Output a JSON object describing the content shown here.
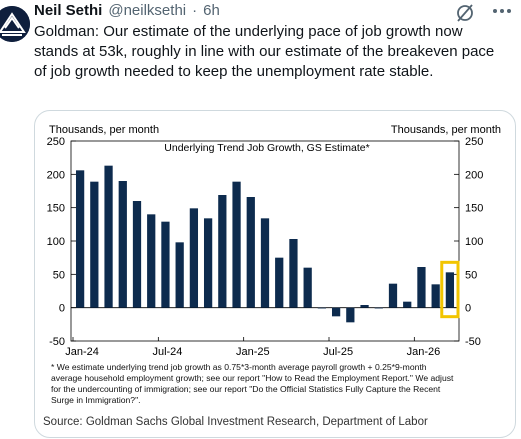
{
  "tweet": {
    "author_name": "Neil Sethi",
    "handle": "@neilksethi",
    "time": "6h",
    "text": "Goldman: Our estimate of the underlying pace of job growth now stands at 53k, roughly in line with our estimate of the breakeven pace of job growth needed to keep the unemployment rate stable.",
    "icons": {
      "avatar": "avatar-logo",
      "grok": "grok-icon",
      "more": "more-icon"
    },
    "colors": {
      "text": "#0f1419",
      "muted": "#536471",
      "border": "#cfd9de"
    }
  },
  "card": {
    "source": "Source: Goldman Sachs Global Investment Research, Department of Labor",
    "footnote": [
      "* We estimate underlying trend job growth as 0.75*3-month  average payroll growth + 0.25*9-month",
      "average household employment  growth; see our report \"How to Read the Employment  Report.\" We adjust",
      "for the undercounting of immigration;  see our report \"Do the Official Statistics Fully Capture the Recent",
      "Surge in Immigration?\"."
    ]
  },
  "chart_data": {
    "type": "bar",
    "title": "Underlying Trend Job Growth, GS Estimate*",
    "left_unit": "Thousands,  per month",
    "right_unit": "Thousands,  per month",
    "ylim": [
      -50,
      250
    ],
    "yticks": [
      -50,
      0,
      50,
      100,
      150,
      200,
      250
    ],
    "x_tick_labels": [
      "Jan-24",
      "Jul-24",
      "Jan-25",
      "Jul-25",
      "Jan-26"
    ],
    "bar_color": "#0d2b4e",
    "highlight_color": "#f2c500",
    "values": [
      206,
      189,
      213,
      190,
      160,
      140,
      129,
      98,
      149,
      134,
      169,
      189,
      166,
      134,
      75,
      103,
      60,
      0,
      -13,
      -22,
      4,
      -1,
      36,
      9,
      61,
      35,
      53
    ],
    "highlight_index": 26
  }
}
